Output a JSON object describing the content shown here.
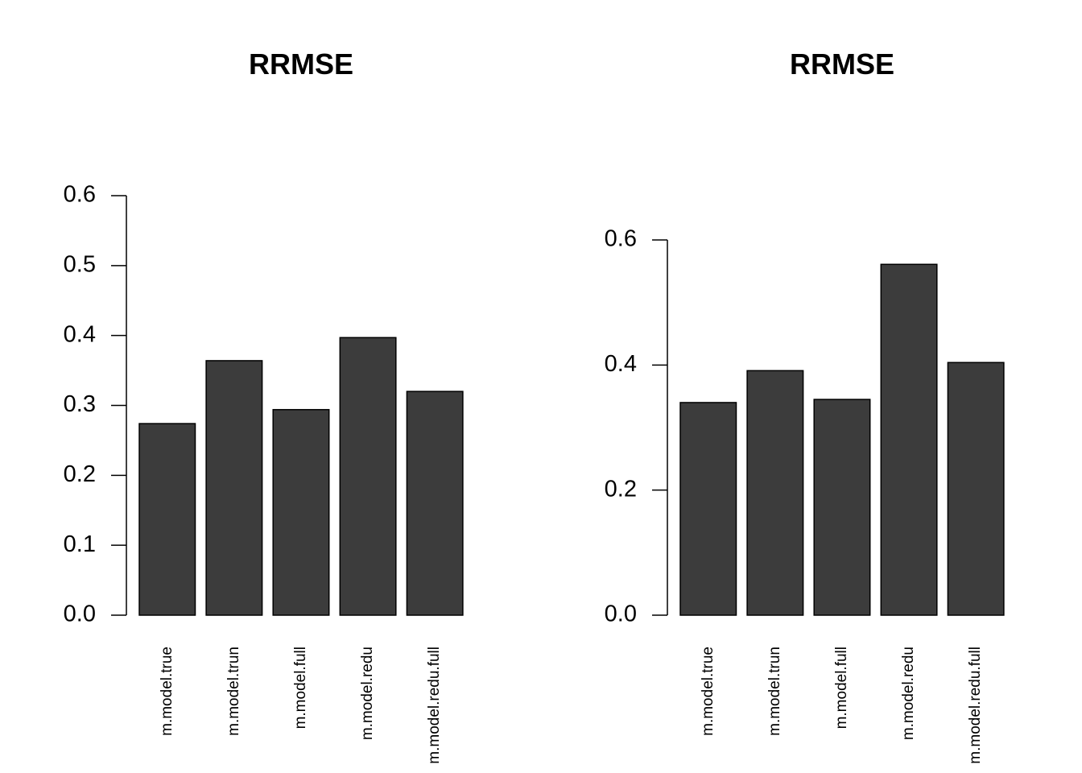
{
  "chart_data": [
    {
      "type": "bar",
      "title": "RRMSE",
      "categories": [
        "m.model.true",
        "m.model.trun",
        "m.model.full",
        "m.model.redu",
        "m.model.redu.full"
      ],
      "values": [
        0.274,
        0.364,
        0.294,
        0.397,
        0.32
      ],
      "color": "#3c3c3c",
      "ylim": [
        0,
        0.6
      ],
      "yticks": [
        {
          "value": 0,
          "label": "0.0"
        },
        0.1,
        0.2,
        0.3,
        0.4,
        0.5,
        0.6
      ]
    },
    {
      "type": "bar",
      "title": "RRMSE",
      "categories": [
        "m.model.true",
        "m.model.trun",
        "m.model.full",
        "m.model.redu",
        "m.model.redu.full"
      ],
      "values": [
        0.34,
        0.391,
        0.345,
        0.561,
        0.404
      ],
      "color": "#3c3c3c",
      "ylim": [
        0,
        0.6
      ],
      "yticks": [
        {
          "value": 0,
          "label": "0.0"
        },
        0.2,
        0.4,
        0.6
      ]
    }
  ]
}
